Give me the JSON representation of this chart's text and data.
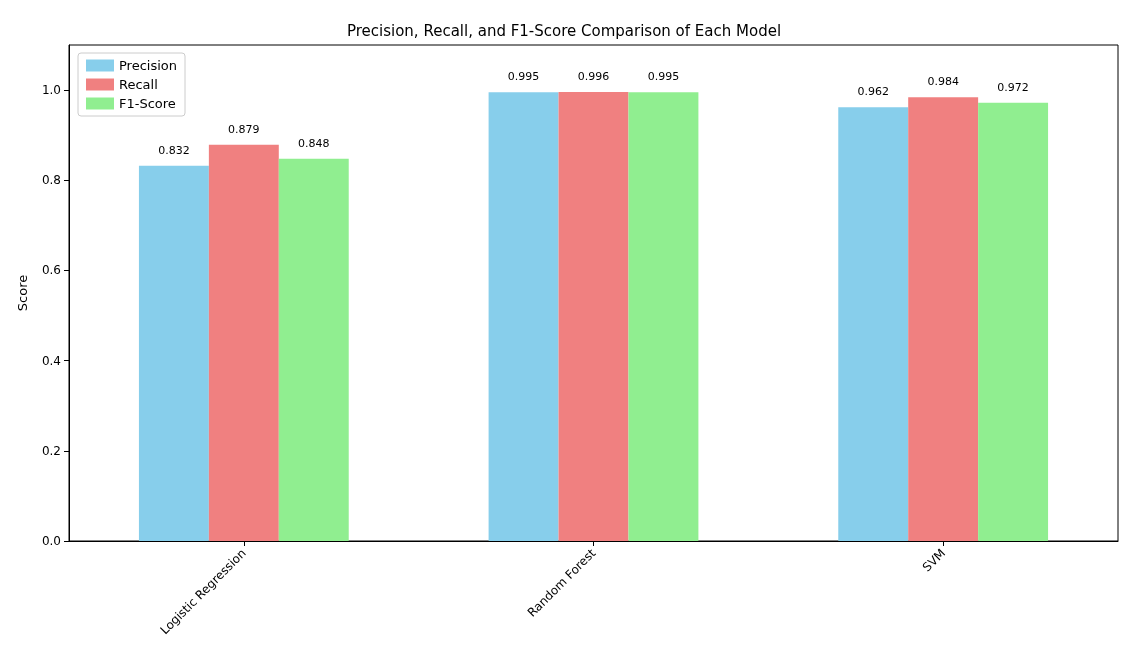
{
  "chart_data": {
    "type": "bar",
    "title": "Precision, Recall, and F1-Score Comparison of Each Model",
    "ylabel": "Score",
    "categories": [
      "Logistic Regression",
      "Random Forest",
      "SVM"
    ],
    "series": [
      {
        "name": "Precision",
        "color": "#87ceeb",
        "values": [
          0.832,
          0.995,
          0.962
        ]
      },
      {
        "name": "Recall",
        "color": "#f08080",
        "values": [
          0.879,
          0.996,
          0.984
        ]
      },
      {
        "name": "F1-Score",
        "color": "#90ee90",
        "values": [
          0.848,
          0.995,
          0.972
        ]
      }
    ],
    "ylim": [
      0,
      1.1
    ],
    "yticks": [
      {
        "value": 0,
        "label": "0.0"
      },
      {
        "value": 0.2,
        "label": "0.2"
      },
      {
        "value": 0.4,
        "label": "0.4"
      },
      {
        "value": 0.6,
        "label": "0.6"
      },
      {
        "value": 0.8,
        "label": "0.8"
      },
      {
        "value": 1,
        "label": "1.0"
      }
    ],
    "data_labels": true,
    "legend": "top left",
    "grid": false
  }
}
